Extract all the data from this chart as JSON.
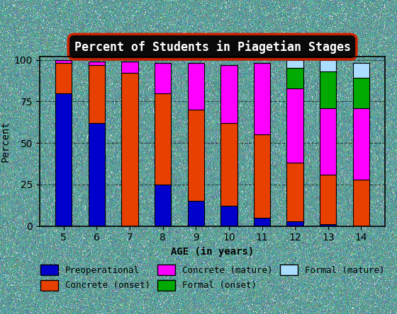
{
  "ages": [
    "5",
    "6",
    "7",
    "8",
    "9",
    "10",
    "11",
    "12",
    "13",
    "14"
  ],
  "preoperational": [
    80,
    62,
    0,
    25,
    15,
    12,
    5,
    3,
    1,
    0
  ],
  "concrete_onset": [
    18,
    35,
    92,
    55,
    55,
    50,
    50,
    35,
    30,
    28
  ],
  "concrete_mature": [
    2,
    2,
    7,
    18,
    28,
    35,
    43,
    45,
    40,
    43
  ],
  "formal_onset": [
    0,
    0,
    0,
    0,
    0,
    0,
    0,
    12,
    22,
    18
  ],
  "formal_mature": [
    0,
    0,
    0,
    0,
    0,
    0,
    0,
    5,
    7,
    9
  ],
  "colors": {
    "preoperational": "#0000cc",
    "concrete_onset": "#e84000",
    "concrete_mature": "#ff00ff",
    "formal_onset": "#00aa00",
    "formal_mature": "#aaddff"
  },
  "title": "Percent of Students in Piagetian Stages",
  "xlabel": "AGE (in years)",
  "ylabel": "Percent",
  "yticks": [
    0,
    25,
    50,
    75,
    100
  ],
  "background_color": "#5f9ea0",
  "title_bg": "#0a0a0a",
  "title_border": "#cc2200",
  "title_color": "#ffffff",
  "legend_labels": [
    "Preoperational",
    "Concrete (onset)",
    "Concrete (mature)",
    "Formal (onset)",
    "Formal (mature)"
  ],
  "legend_colors_order": [
    "preoperational",
    "concrete_onset",
    "concrete_mature",
    "formal_onset",
    "formal_mature"
  ]
}
